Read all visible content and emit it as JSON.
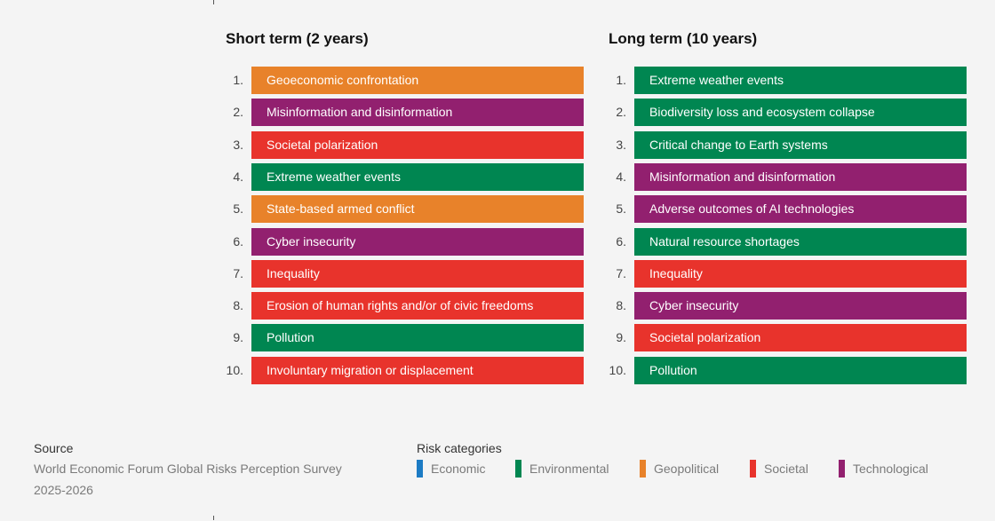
{
  "columns": [
    {
      "title": "Short term (2 years)",
      "items": [
        {
          "rank": "1.",
          "label": "Geoeconomic confrontation",
          "color": "#e8822a"
        },
        {
          "rank": "2.",
          "label": "Misinformation and disinformation",
          "color": "#92206f"
        },
        {
          "rank": "3.",
          "label": "Societal polarization",
          "color": "#e8332c"
        },
        {
          "rank": "4.",
          "label": "Extreme weather events",
          "color": "#008651"
        },
        {
          "rank": "5.",
          "label": "State-based armed conflict",
          "color": "#e8822a"
        },
        {
          "rank": "6.",
          "label": "Cyber insecurity",
          "color": "#92206f"
        },
        {
          "rank": "7.",
          "label": "Inequality",
          "color": "#e8332c"
        },
        {
          "rank": "8.",
          "label": "Erosion of human rights and/or of civic freedoms",
          "color": "#e8332c"
        },
        {
          "rank": "9.",
          "label": "Pollution",
          "color": "#008651"
        },
        {
          "rank": "10.",
          "label": "Involuntary migration or displacement",
          "color": "#e8332c"
        }
      ]
    },
    {
      "title": "Long term (10 years)",
      "items": [
        {
          "rank": "1.",
          "label": "Extreme weather events",
          "color": "#008651"
        },
        {
          "rank": "2.",
          "label": "Biodiversity loss and ecosystem collapse",
          "color": "#008651"
        },
        {
          "rank": "3.",
          "label": "Critical change to Earth systems",
          "color": "#008651"
        },
        {
          "rank": "4.",
          "label": "Misinformation and disinformation",
          "color": "#92206f"
        },
        {
          "rank": "5.",
          "label": "Adverse outcomes of AI technologies",
          "color": "#92206f"
        },
        {
          "rank": "6.",
          "label": "Natural resource shortages",
          "color": "#008651"
        },
        {
          "rank": "7.",
          "label": "Inequality",
          "color": "#e8332c"
        },
        {
          "rank": "8.",
          "label": "Cyber insecurity",
          "color": "#92206f"
        },
        {
          "rank": "9.",
          "label": "Societal polarization",
          "color": "#e8332c"
        },
        {
          "rank": "10.",
          "label": "Pollution",
          "color": "#008651"
        }
      ]
    }
  ],
  "source": {
    "label": "Source",
    "text": "World Economic Forum Global Risks Perception Survey 2025-2026"
  },
  "legend": {
    "title": "Risk categories",
    "items": [
      {
        "label": "Economic",
        "color": "#1c7bc4"
      },
      {
        "label": "Environmental",
        "color": "#008651"
      },
      {
        "label": "Geopolitical",
        "color": "#e8822a"
      },
      {
        "label": "Societal",
        "color": "#e8332c"
      },
      {
        "label": "Technological",
        "color": "#92206f"
      }
    ]
  }
}
